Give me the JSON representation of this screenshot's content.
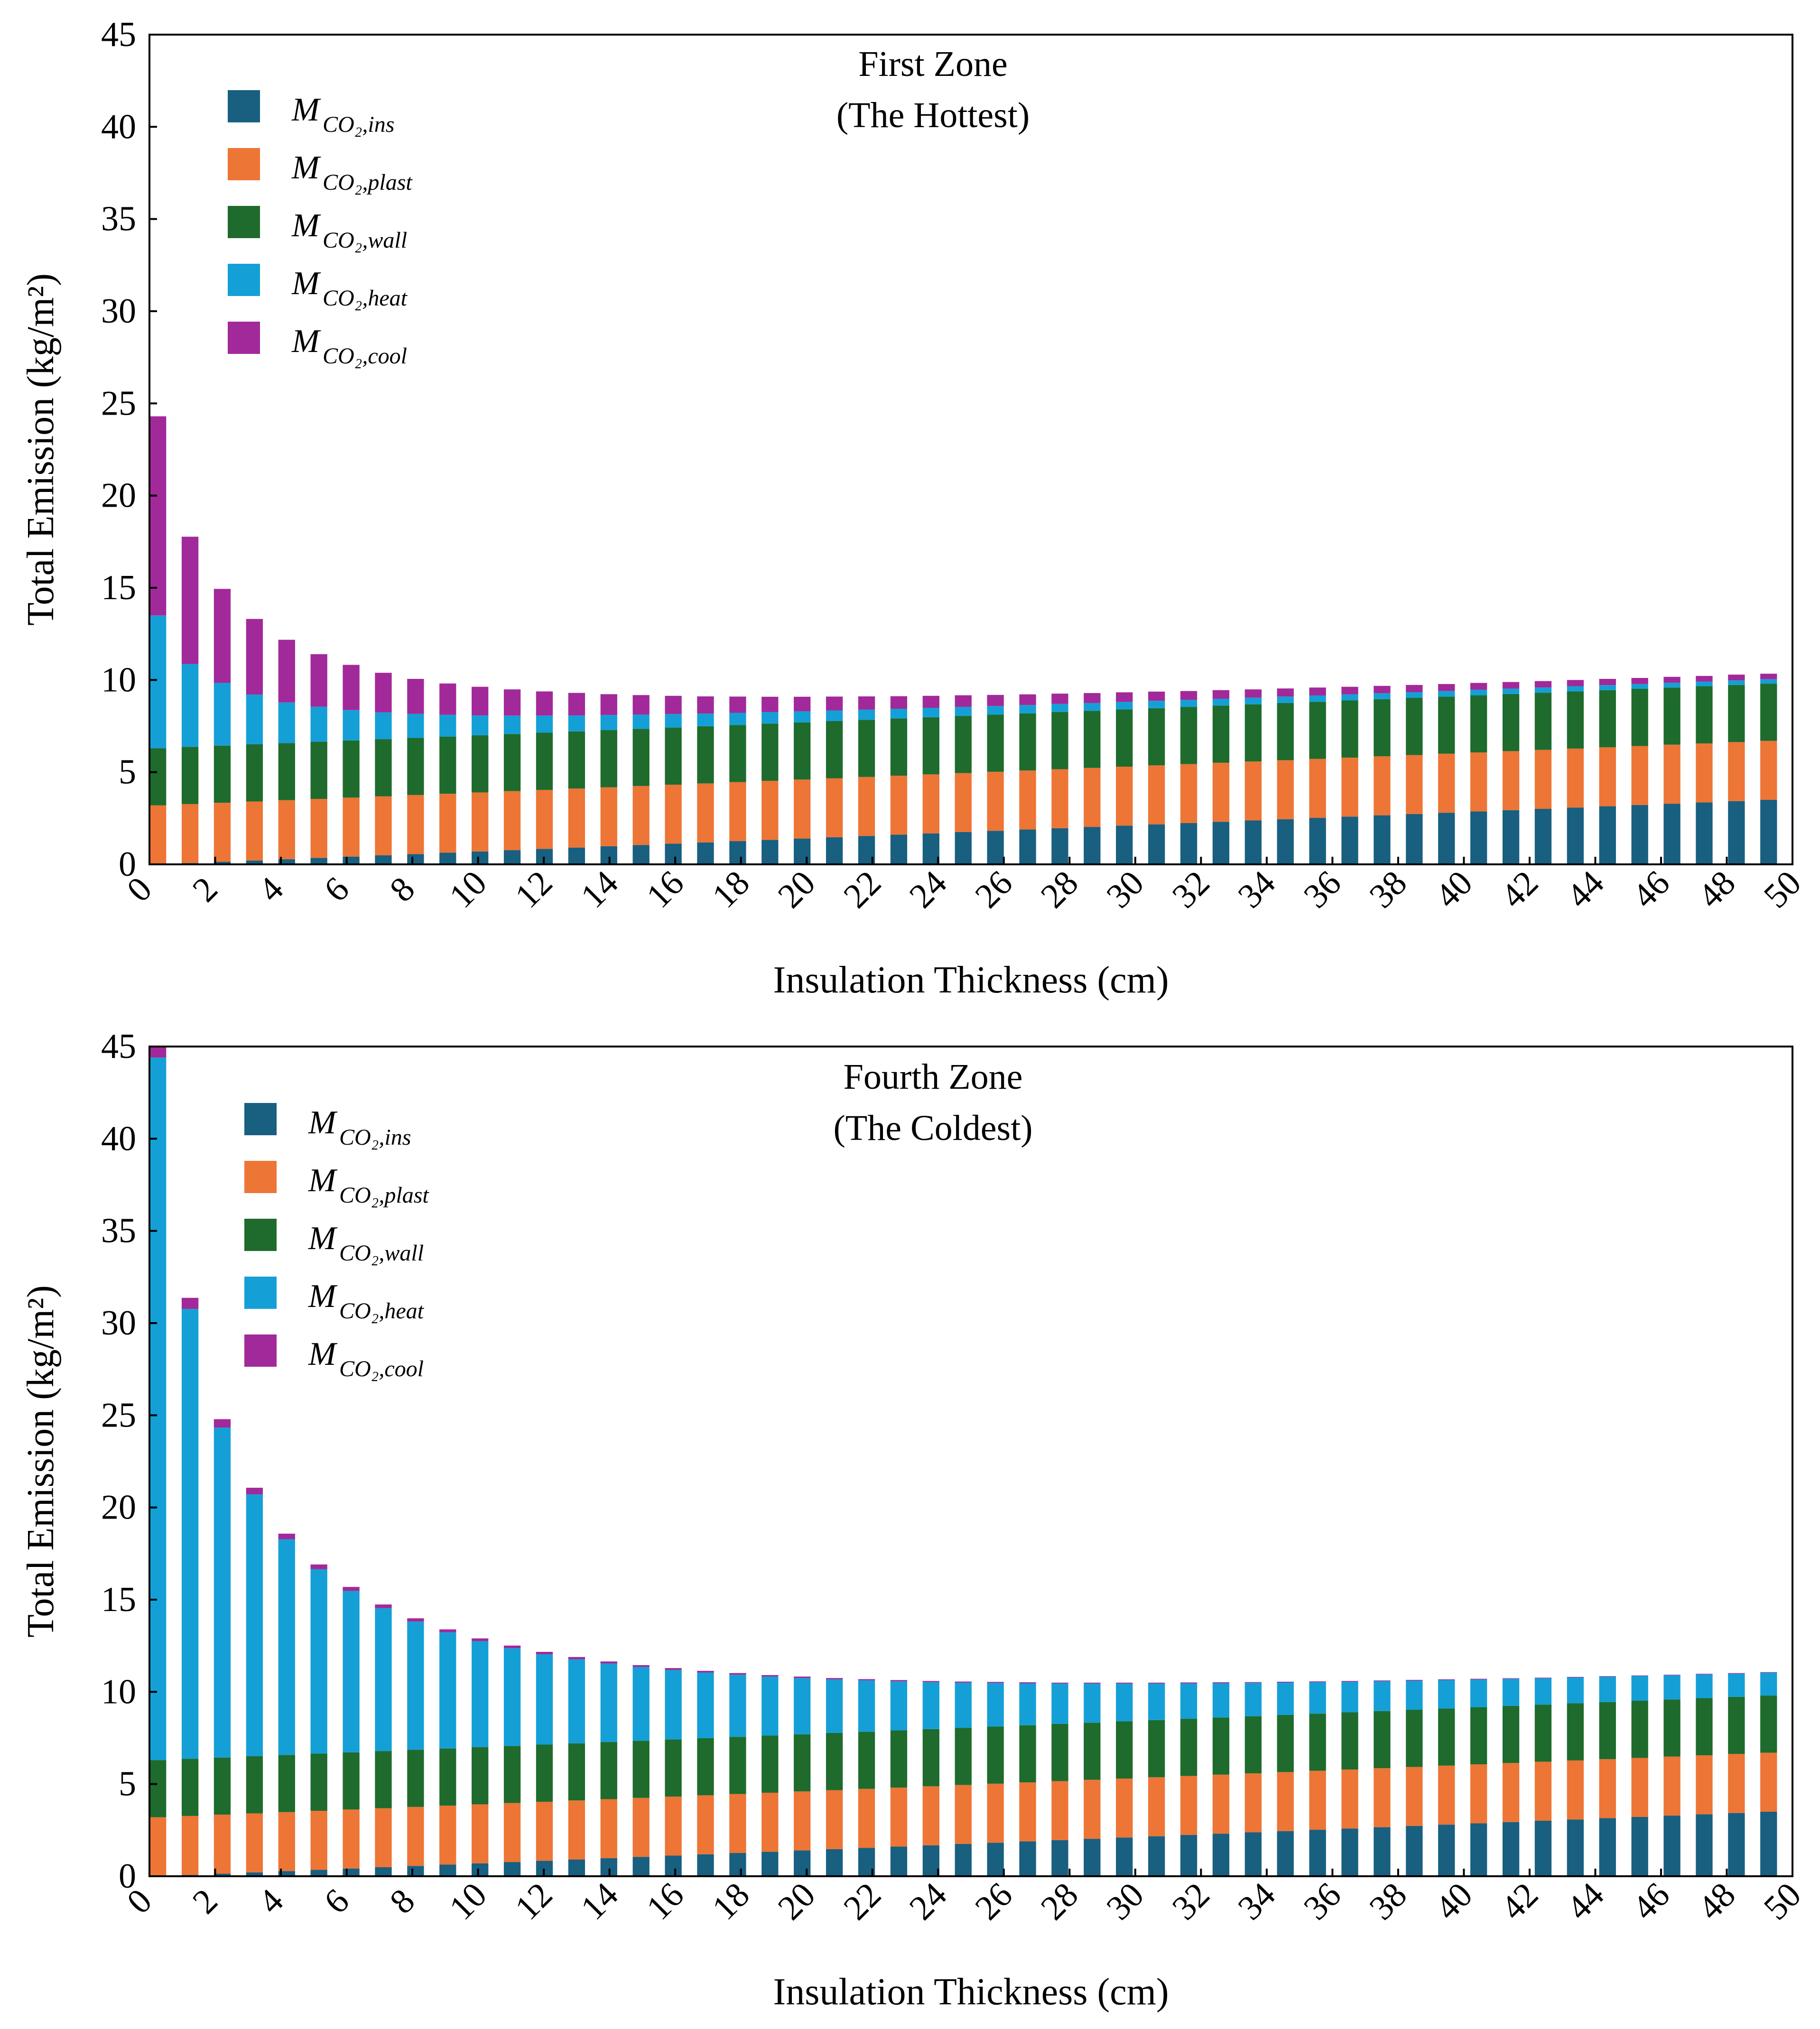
{
  "chart_data": [
    {
      "type": "bar",
      "stacked": true,
      "title": "First Zone",
      "subtitle": "(The Hottest)",
      "xlabel": "Insulation Thickness (cm)",
      "ylabel": "Total Emission (kg/m²)",
      "ylim": [
        0,
        45
      ],
      "yticks": [
        0,
        5,
        10,
        15,
        20,
        25,
        30,
        35,
        40,
        45
      ],
      "xlim": [
        0,
        50
      ],
      "xticks": [
        0,
        2,
        4,
        6,
        8,
        10,
        12,
        14,
        16,
        18,
        20,
        22,
        24,
        26,
        28,
        30,
        32,
        34,
        36,
        38,
        40,
        42,
        44,
        46,
        48,
        50
      ],
      "x": [
        0,
        1,
        2,
        3,
        4,
        5,
        6,
        7,
        8,
        9,
        10,
        11,
        12,
        13,
        14,
        15,
        16,
        17,
        18,
        19,
        20,
        21,
        22,
        23,
        24,
        25,
        26,
        27,
        28,
        29,
        30,
        31,
        32,
        33,
        34,
        35,
        36,
        37,
        38,
        39,
        40,
        41,
        42,
        43,
        44,
        45,
        46,
        47,
        48,
        49,
        50
      ],
      "legend_position": "top-left",
      "grid": false,
      "series": [
        {
          "name": "M",
          "sub": "CO₂,ins",
          "color": "#185f80",
          "values": [
            0,
            0.07,
            0.14,
            0.21,
            0.28,
            0.35,
            0.42,
            0.49,
            0.56,
            0.63,
            0.7,
            0.77,
            0.84,
            0.91,
            0.98,
            1.05,
            1.12,
            1.19,
            1.26,
            1.33,
            1.4,
            1.47,
            1.54,
            1.61,
            1.68,
            1.75,
            1.82,
            1.89,
            1.96,
            2.03,
            2.1,
            2.17,
            2.24,
            2.31,
            2.38,
            2.45,
            2.52,
            2.59,
            2.66,
            2.73,
            2.8,
            2.87,
            2.94,
            3.01,
            3.08,
            3.15,
            3.22,
            3.29,
            3.36,
            3.43,
            3.5
          ]
        },
        {
          "name": "M",
          "sub": "CO₂,plast",
          "color": "#ed7536",
          "values": [
            3.2,
            3.2,
            3.2,
            3.2,
            3.2,
            3.2,
            3.2,
            3.2,
            3.2,
            3.2,
            3.2,
            3.2,
            3.2,
            3.2,
            3.2,
            3.2,
            3.2,
            3.2,
            3.2,
            3.2,
            3.2,
            3.2,
            3.2,
            3.2,
            3.2,
            3.2,
            3.2,
            3.2,
            3.2,
            3.2,
            3.2,
            3.2,
            3.2,
            3.2,
            3.2,
            3.2,
            3.2,
            3.2,
            3.2,
            3.2,
            3.2,
            3.2,
            3.2,
            3.2,
            3.2,
            3.2,
            3.2,
            3.2,
            3.2,
            3.2,
            3.2
          ]
        },
        {
          "name": "M",
          "sub": "CO₂,wall",
          "color": "#1e6b2d",
          "values": [
            3.1,
            3.1,
            3.1,
            3.1,
            3.1,
            3.1,
            3.1,
            3.1,
            3.1,
            3.1,
            3.1,
            3.1,
            3.1,
            3.1,
            3.1,
            3.1,
            3.1,
            3.1,
            3.1,
            3.1,
            3.1,
            3.1,
            3.1,
            3.1,
            3.1,
            3.1,
            3.1,
            3.1,
            3.1,
            3.1,
            3.1,
            3.1,
            3.1,
            3.1,
            3.1,
            3.1,
            3.1,
            3.1,
            3.1,
            3.1,
            3.1,
            3.1,
            3.1,
            3.1,
            3.1,
            3.1,
            3.1,
            3.1,
            3.1,
            3.1,
            3.1
          ]
        },
        {
          "name": "M",
          "sub": "CO₂,heat",
          "color": "#14a0d6",
          "values": [
            7.2,
            4.5,
            3.4,
            2.7,
            2.2,
            1.9,
            1.65,
            1.45,
            1.3,
            1.18,
            1.08,
            1.0,
            0.93,
            0.87,
            0.82,
            0.77,
            0.73,
            0.69,
            0.66,
            0.63,
            0.6,
            0.58,
            0.55,
            0.53,
            0.51,
            0.49,
            0.47,
            0.45,
            0.44,
            0.42,
            0.41,
            0.4,
            0.38,
            0.37,
            0.36,
            0.35,
            0.34,
            0.33,
            0.32,
            0.31,
            0.3,
            0.3,
            0.29,
            0.28,
            0.28,
            0.27,
            0.26,
            0.26,
            0.25,
            0.25,
            0.24
          ]
        },
        {
          "name": "M",
          "sub": "CO₂,cool",
          "color": "#a2299a",
          "values": [
            10.8,
            6.9,
            5.1,
            4.1,
            3.4,
            2.85,
            2.45,
            2.15,
            1.9,
            1.7,
            1.55,
            1.42,
            1.31,
            1.22,
            1.13,
            1.06,
            0.99,
            0.93,
            0.88,
            0.83,
            0.79,
            0.75,
            0.72,
            0.68,
            0.65,
            0.63,
            0.6,
            0.58,
            0.56,
            0.54,
            0.52,
            0.5,
            0.48,
            0.47,
            0.45,
            0.44,
            0.43,
            0.41,
            0.4,
            0.39,
            0.38,
            0.37,
            0.36,
            0.35,
            0.34,
            0.34,
            0.33,
            0.32,
            0.31,
            0.31,
            0.3
          ]
        }
      ]
    },
    {
      "type": "bar",
      "stacked": true,
      "title": "Fourth Zone",
      "subtitle": "(The Coldest)",
      "xlabel": "Insulation Thickness (cm)",
      "ylabel": "Total Emission (kg/m²)",
      "ylim": [
        0,
        45
      ],
      "yticks": [
        0,
        5,
        10,
        15,
        20,
        25,
        30,
        35,
        40,
        45
      ],
      "xlim": [
        0,
        50
      ],
      "xticks": [
        0,
        2,
        4,
        6,
        8,
        10,
        12,
        14,
        16,
        18,
        20,
        22,
        24,
        26,
        28,
        30,
        32,
        34,
        36,
        38,
        40,
        42,
        44,
        46,
        48,
        50
      ],
      "x": [
        0,
        1,
        2,
        3,
        4,
        5,
        6,
        7,
        8,
        9,
        10,
        11,
        12,
        13,
        14,
        15,
        16,
        17,
        18,
        19,
        20,
        21,
        22,
        23,
        24,
        25,
        26,
        27,
        28,
        29,
        30,
        31,
        32,
        33,
        34,
        35,
        36,
        37,
        38,
        39,
        40,
        41,
        42,
        43,
        44,
        45,
        46,
        47,
        48,
        49,
        50
      ],
      "legend_position": "top-left",
      "grid": false,
      "series": [
        {
          "name": "M",
          "sub": "CO₂,ins",
          "color": "#185f80",
          "values": [
            0,
            0.07,
            0.14,
            0.21,
            0.28,
            0.35,
            0.42,
            0.49,
            0.56,
            0.63,
            0.7,
            0.77,
            0.84,
            0.91,
            0.98,
            1.05,
            1.12,
            1.19,
            1.26,
            1.33,
            1.4,
            1.47,
            1.54,
            1.61,
            1.68,
            1.75,
            1.82,
            1.89,
            1.96,
            2.03,
            2.1,
            2.17,
            2.24,
            2.31,
            2.38,
            2.45,
            2.52,
            2.59,
            2.66,
            2.73,
            2.8,
            2.87,
            2.94,
            3.01,
            3.08,
            3.15,
            3.22,
            3.29,
            3.36,
            3.43,
            3.5
          ]
        },
        {
          "name": "M",
          "sub": "CO₂,plast",
          "color": "#ed7536",
          "values": [
            3.2,
            3.2,
            3.2,
            3.2,
            3.2,
            3.2,
            3.2,
            3.2,
            3.2,
            3.2,
            3.2,
            3.2,
            3.2,
            3.2,
            3.2,
            3.2,
            3.2,
            3.2,
            3.2,
            3.2,
            3.2,
            3.2,
            3.2,
            3.2,
            3.2,
            3.2,
            3.2,
            3.2,
            3.2,
            3.2,
            3.2,
            3.2,
            3.2,
            3.2,
            3.2,
            3.2,
            3.2,
            3.2,
            3.2,
            3.2,
            3.2,
            3.2,
            3.2,
            3.2,
            3.2,
            3.2,
            3.2,
            3.2,
            3.2,
            3.2,
            3.2
          ]
        },
        {
          "name": "M",
          "sub": "CO₂,wall",
          "color": "#1e6b2d",
          "values": [
            3.1,
            3.1,
            3.1,
            3.1,
            3.1,
            3.1,
            3.1,
            3.1,
            3.1,
            3.1,
            3.1,
            3.1,
            3.1,
            3.1,
            3.1,
            3.1,
            3.1,
            3.1,
            3.1,
            3.1,
            3.1,
            3.1,
            3.1,
            3.1,
            3.1,
            3.1,
            3.1,
            3.1,
            3.1,
            3.1,
            3.1,
            3.1,
            3.1,
            3.1,
            3.1,
            3.1,
            3.1,
            3.1,
            3.1,
            3.1,
            3.1,
            3.1,
            3.1,
            3.1,
            3.1,
            3.1,
            3.1,
            3.1,
            3.1,
            3.1,
            3.1
          ]
        },
        {
          "name": "M",
          "sub": "CO₂,heat",
          "color": "#14a0d6",
          "values": [
            38.1,
            24.4,
            17.9,
            14.2,
            11.7,
            10.0,
            8.75,
            7.75,
            6.95,
            6.3,
            5.75,
            5.3,
            4.9,
            4.56,
            4.26,
            4.0,
            3.77,
            3.56,
            3.37,
            3.2,
            3.05,
            2.91,
            2.78,
            2.66,
            2.55,
            2.45,
            2.36,
            2.27,
            2.19,
            2.12,
            2.05,
            1.98,
            1.92,
            1.86,
            1.81,
            1.76,
            1.71,
            1.66,
            1.62,
            1.58,
            1.54,
            1.5,
            1.47,
            1.43,
            1.4,
            1.37,
            1.34,
            1.31,
            1.29,
            1.26,
            1.24
          ]
        },
        {
          "name": "M",
          "sub": "CO₂,cool",
          "color": "#a2299a",
          "values": [
            0.7,
            0.6,
            0.45,
            0.36,
            0.3,
            0.26,
            0.22,
            0.2,
            0.18,
            0.16,
            0.15,
            0.14,
            0.13,
            0.12,
            0.11,
            0.1,
            0.1,
            0.09,
            0.09,
            0.08,
            0.08,
            0.07,
            0.07,
            0.07,
            0.06,
            0.06,
            0.06,
            0.06,
            0.05,
            0.05,
            0.05,
            0.05,
            0.05,
            0.05,
            0.04,
            0.04,
            0.04,
            0.04,
            0.04,
            0.04,
            0.04,
            0.04,
            0.03,
            0.03,
            0.03,
            0.03,
            0.03,
            0.03,
            0.03,
            0.03,
            0.03
          ]
        }
      ]
    }
  ]
}
